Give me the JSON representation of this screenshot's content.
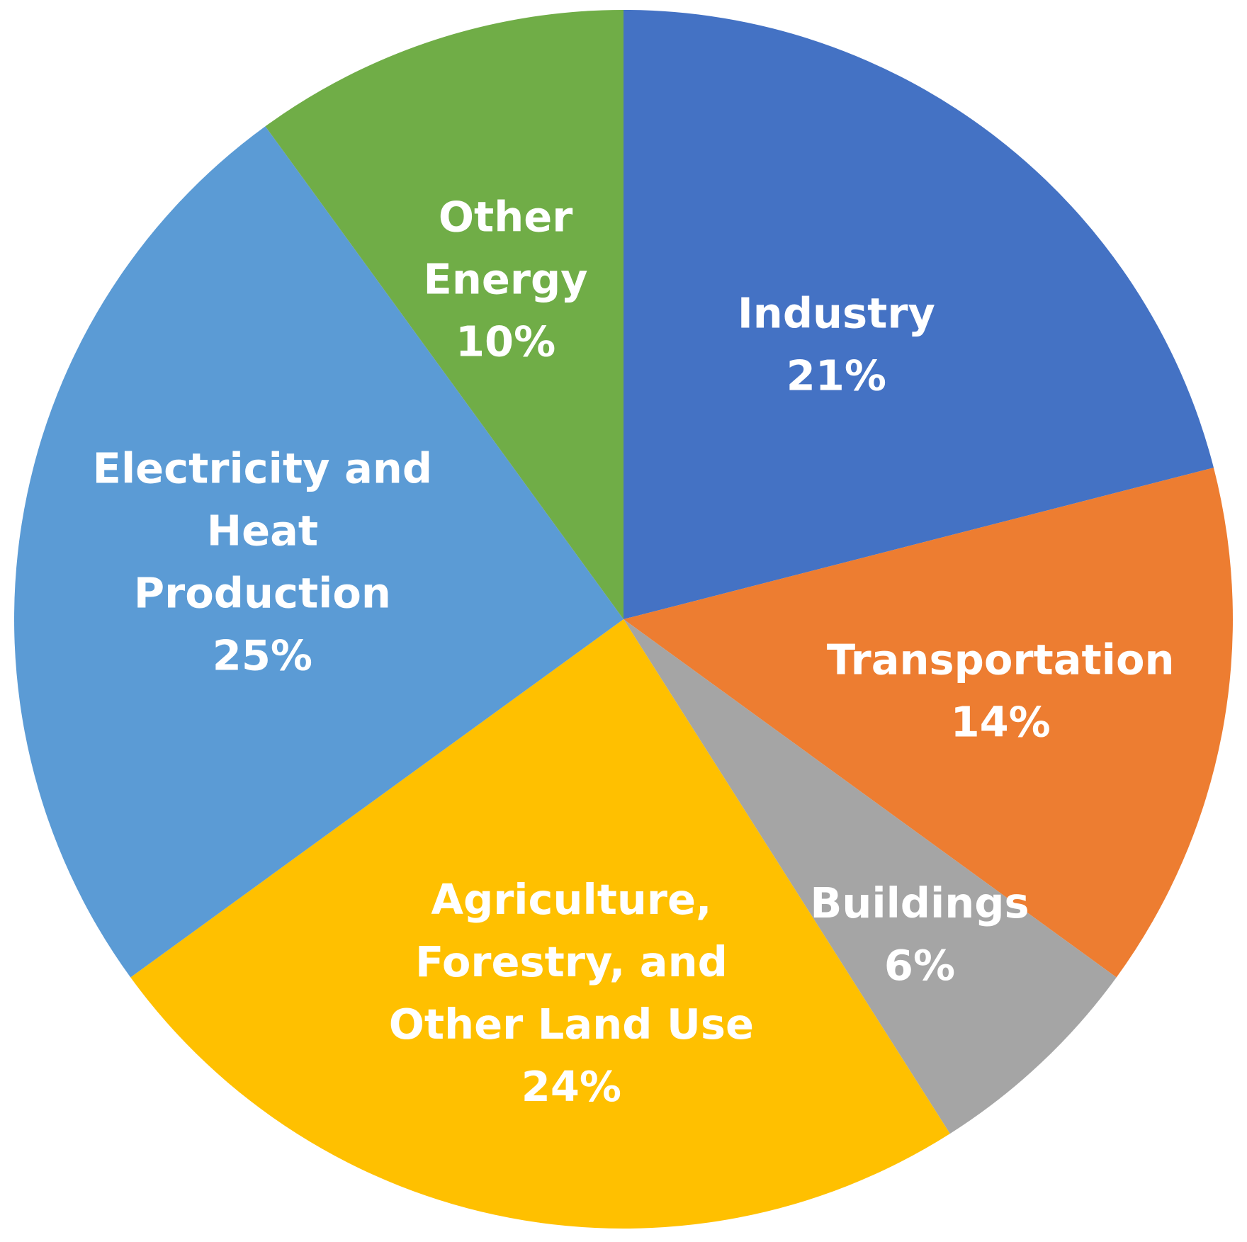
{
  "chart_data": {
    "type": "pie",
    "title": "",
    "slices": [
      {
        "label_lines": [
          "Industry"
        ],
        "value": 21,
        "value_label": "21%",
        "color": "#4472C4"
      },
      {
        "label_lines": [
          "Transportation"
        ],
        "value": 14,
        "value_label": "14%",
        "color": "#ED7D31"
      },
      {
        "label_lines": [
          "Buildings"
        ],
        "value": 6,
        "value_label": "6%",
        "color": "#A5A5A5"
      },
      {
        "label_lines": [
          "Agriculture,",
          "Forestry,  and",
          "Other Land Use"
        ],
        "value": 24,
        "value_label": "24%",
        "color": "#FFC000"
      },
      {
        "label_lines": [
          "Electricity and",
          "Heat",
          "Production"
        ],
        "value": 25,
        "value_label": "25%",
        "color": "#5B9BD5"
      },
      {
        "label_lines": [
          "Other",
          "Energy"
        ],
        "value": 10,
        "value_label": "10%",
        "color": "#70AD47"
      }
    ],
    "start": "12 o'clock",
    "direction": "clockwise",
    "legend": "none",
    "labels": "inside slices"
  }
}
